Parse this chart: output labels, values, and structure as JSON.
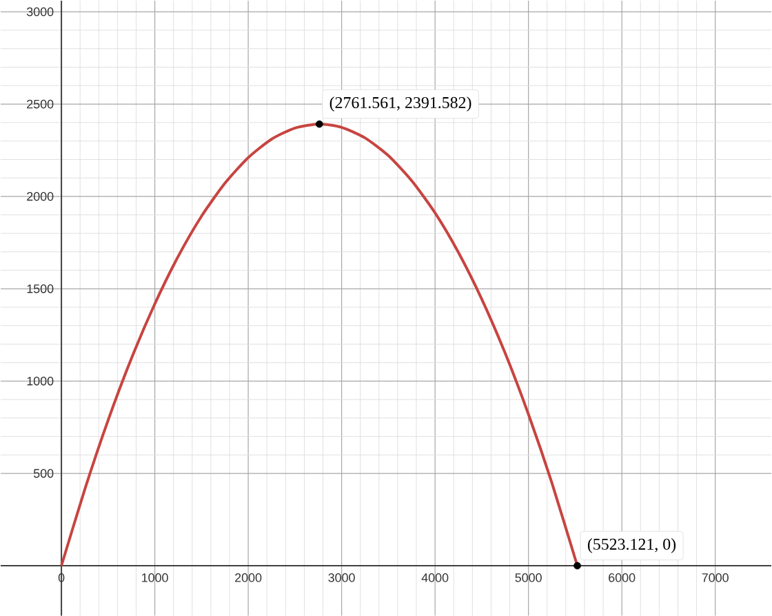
{
  "chart_data": {
    "type": "line",
    "x": [
      0,
      250,
      500,
      750,
      1000,
      1250,
      1500,
      1750,
      2000,
      2250,
      2500,
      2761.561,
      3000,
      3250,
      3500,
      3750,
      4000,
      4250,
      4500,
      4750,
      5000,
      5250,
      5523.121
    ],
    "series": [
      {
        "color": "#c74440",
        "values": [
          0,
          413,
          788,
          1123,
          1418,
          1675,
          1893,
          2071,
          2210,
          2310,
          2370,
          2392,
          2374,
          2317,
          2221,
          2085,
          1911,
          1697,
          1444,
          1152,
          820,
          450,
          0
        ]
      }
    ],
    "xlim": [
      -650,
      7600
    ],
    "ylim": [
      -270,
      3060
    ],
    "xticks": [
      0,
      1000,
      2000,
      3000,
      4000,
      5000,
      6000,
      7000
    ],
    "yticks": [
      500,
      1000,
      1500,
      2000,
      2500,
      3000
    ],
    "grid": true,
    "marker": "none",
    "line_style": "solid",
    "annotations": [
      {
        "text": "(2761.561, 2391.582)",
        "x": 2761.561,
        "y": 2391.582
      },
      {
        "text": "(5523.121, 0)",
        "x": 5523.121,
        "y": 0
      }
    ]
  }
}
